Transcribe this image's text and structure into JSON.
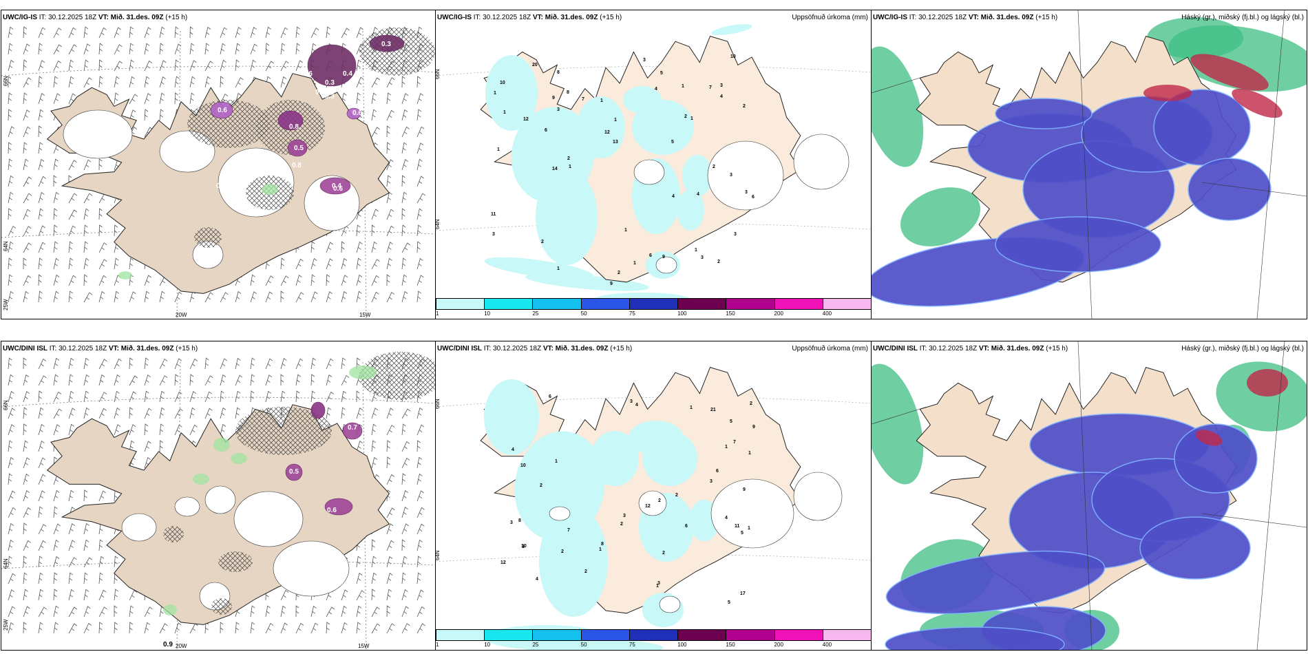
{
  "header": {
    "it_label": "IT: 30.12.2025 18Z",
    "vt_label": "VT: Mið. 31.des. 09Z",
    "lead": "(+15 h)"
  },
  "titles": {
    "precip": "Uppsöfnuð úrkoma (mm)",
    "cloud": "Háský (gr.), miðský (fj.bl.) og lágský (bl.)"
  },
  "models": {
    "top": "UWC/IG-IS",
    "bottom": "UWC/DINI ISL"
  },
  "axis": {
    "lat66": "66N",
    "lat64": "64N",
    "lon25": "25W",
    "lon20": "20W",
    "lon15": "15W"
  },
  "legend": {
    "ticks": [
      "1",
      "10",
      "25",
      "50",
      "75",
      "100",
      "150",
      "200",
      "400"
    ],
    "colors": [
      "#c8f8f8",
      "#19e6ee",
      "#14c0ee",
      "#2b55e6",
      "#1f2fb8",
      "#6e0050",
      "#b0008e",
      "#f014b8",
      "#f6b8ee"
    ]
  },
  "wind_labels": {
    "top": [
      "0.3",
      "0.6",
      "0.3",
      "0.4",
      "0.5",
      "0.3",
      "0.6",
      "0.8",
      "0.5",
      "0.8",
      "0.6",
      "0.8",
      "0.4",
      "0.6"
    ],
    "bottom": [
      "0.9",
      "0.5",
      "0.6",
      "0.7"
    ]
  },
  "precip_numbers": {
    "top": [
      "1",
      "3",
      "5",
      "2",
      "7",
      "9",
      "4",
      "1",
      "3",
      "6",
      "3",
      "8",
      "2",
      "2",
      "1",
      "1",
      "2",
      "1",
      "2",
      "6",
      "3",
      "3",
      "13",
      "1",
      "1",
      "6",
      "4",
      "5",
      "20",
      "14",
      "11",
      "9",
      "10",
      "12",
      "10",
      "8",
      "7",
      "4",
      "3",
      "3",
      "1",
      "9",
      "12",
      "1",
      "1",
      "2",
      "1",
      "2",
      "3",
      "4",
      "1"
    ],
    "bottom": [
      "1",
      "3",
      "4",
      "2",
      "11",
      "9",
      "5",
      "7",
      "4",
      "6",
      "3",
      "12",
      "2",
      "1",
      "4",
      "2",
      "1",
      "3",
      "10",
      "6",
      "5",
      "21",
      "17",
      "6",
      "9",
      "12",
      "1",
      "7",
      "8",
      "2",
      "5",
      "3",
      "3",
      "8",
      "10",
      "1",
      "2",
      "2",
      "1",
      "2",
      "3",
      "2",
      "1",
      "4"
    ]
  }
}
